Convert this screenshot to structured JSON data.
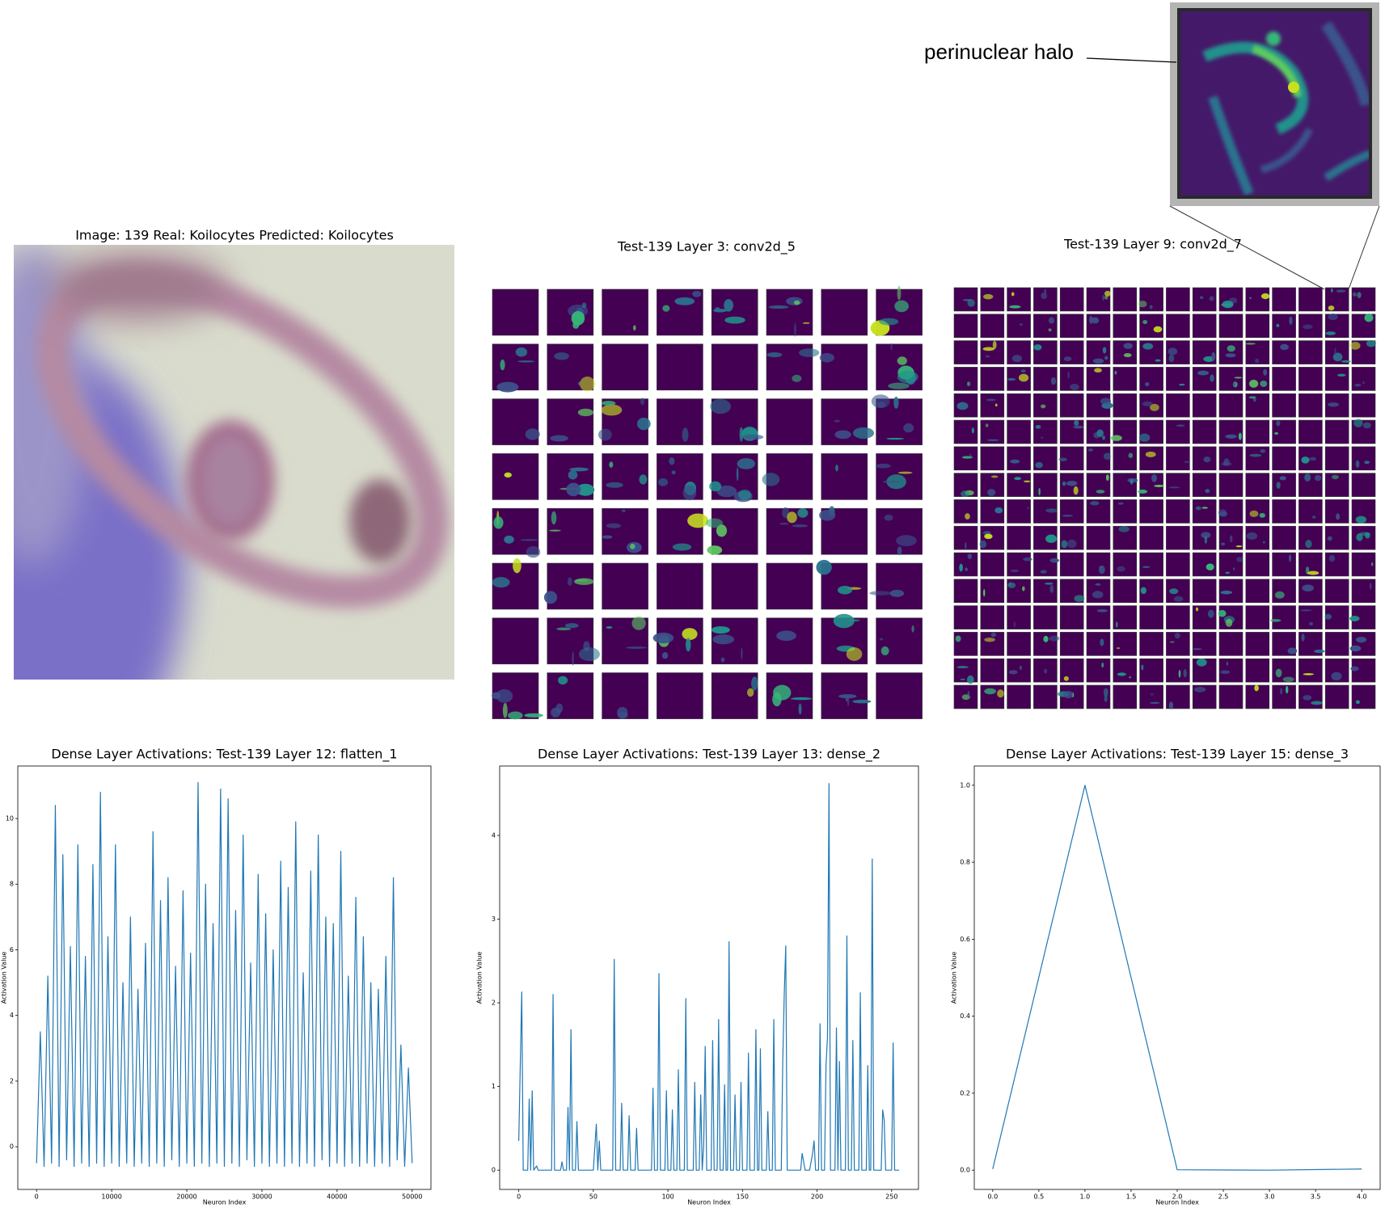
{
  "annotation": "perinuclear halo",
  "images": [
    {
      "title": "Image: 139 Real: Koilocytes Predicted: Koilocytes"
    },
    {
      "title": "Test-139 Layer 3: conv2d_5"
    },
    {
      "title": "Test-139 Layer 9: conv2d_7"
    }
  ],
  "chart_data": [
    {
      "type": "line",
      "title": "Dense Layer Activations: Test-139 Layer 12: flatten_1",
      "x_label": "Neuron Index",
      "y_label": "Activation Value",
      "color": "#1f77b4",
      "x": [
        0,
        500,
        1000,
        1500,
        2000,
        2500,
        3000,
        3500,
        4000,
        4500,
        5000,
        5500,
        6000,
        6500,
        7000,
        7500,
        8000,
        8500,
        9000,
        9500,
        10000,
        10500,
        11000,
        11500,
        12000,
        12500,
        13000,
        13500,
        14000,
        14500,
        15000,
        15500,
        16000,
        16500,
        17000,
        17500,
        18000,
        18500,
        19000,
        19500,
        20000,
        20500,
        21000,
        21500,
        22000,
        22500,
        23000,
        23500,
        24000,
        24500,
        25000,
        25500,
        26000,
        26500,
        27000,
        27500,
        28000,
        28500,
        29000,
        29500,
        30000,
        30500,
        31000,
        31500,
        32000,
        32500,
        33000,
        33500,
        34000,
        34500,
        35000,
        35500,
        36000,
        36500,
        37000,
        37500,
        38000,
        38500,
        39000,
        39500,
        40000,
        40500,
        41000,
        41500,
        42000,
        42500,
        43000,
        43500,
        44000,
        44500,
        45000,
        45500,
        46000,
        46500,
        47000,
        47500,
        48000,
        48500,
        49000,
        49500,
        50000
      ],
      "values": [
        -0.5,
        3.5,
        -0.6,
        5.2,
        -0.5,
        10.4,
        -0.6,
        8.9,
        -0.4,
        6.1,
        -0.6,
        9.2,
        -0.5,
        5.8,
        -0.6,
        8.6,
        -0.5,
        10.8,
        -0.6,
        6.4,
        -0.5,
        9.2,
        -0.6,
        5.0,
        -0.5,
        7.0,
        -0.6,
        4.8,
        -0.5,
        6.2,
        -0.6,
        9.6,
        -0.5,
        7.5,
        -0.6,
        8.2,
        -0.4,
        5.5,
        -0.6,
        7.8,
        -0.5,
        5.9,
        -0.6,
        11.1,
        -0.5,
        8.0,
        -0.6,
        6.8,
        -0.5,
        10.9,
        -0.6,
        10.6,
        -0.5,
        7.2,
        -0.6,
        9.5,
        -0.4,
        5.6,
        -0.6,
        8.3,
        -0.5,
        7.1,
        -0.6,
        6.0,
        -0.5,
        8.7,
        -0.6,
        7.9,
        -0.5,
        9.9,
        -0.6,
        5.3,
        -0.5,
        8.4,
        -0.6,
        9.5,
        -0.4,
        7.0,
        -0.6,
        6.8,
        -0.5,
        9.0,
        -0.6,
        5.2,
        -0.5,
        7.6,
        -0.6,
        6.4,
        -0.5,
        5.0,
        -0.6,
        4.8,
        -0.5,
        5.8,
        -0.6,
        8.2,
        -0.4,
        3.1,
        -0.6,
        2.4,
        -0.5
      ],
      "xlim": [
        -2500,
        52500
      ],
      "ylim": [
        -1.3,
        11.6
      ],
      "xticks": [
        0,
        10000,
        20000,
        30000,
        40000,
        50000
      ],
      "yticks": [
        0,
        2,
        4,
        6,
        8,
        10
      ]
    },
    {
      "type": "line",
      "title": "Dense Layer Activations: Test-139 Layer 13: dense_2",
      "x_label": "Neuron Index",
      "y_label": "Activation Value",
      "color": "#1f77b4",
      "x": [
        0,
        2,
        3,
        6,
        7,
        8,
        9,
        10,
        12,
        13,
        22,
        23,
        24,
        28,
        29,
        30,
        32,
        33,
        34,
        35,
        36,
        38,
        39,
        40,
        50,
        52,
        53,
        54,
        55,
        63,
        64,
        65,
        68,
        69,
        70,
        73,
        74,
        75,
        78,
        79,
        80,
        89,
        90,
        91,
        93,
        94,
        95,
        98,
        99,
        100,
        102,
        103,
        104,
        106,
        107,
        108,
        111,
        112,
        113,
        117,
        118,
        119,
        121,
        122,
        123,
        124,
        125,
        126,
        129,
        130,
        131,
        133,
        134,
        135,
        137,
        138,
        139,
        140,
        141,
        142,
        144,
        145,
        146,
        148,
        149,
        150,
        153,
        154,
        155,
        158,
        159,
        160,
        161,
        162,
        163,
        166,
        167,
        168,
        170,
        171,
        172,
        176,
        177,
        178,
        179,
        180,
        189,
        190,
        191,
        192,
        195,
        196,
        197,
        198,
        199,
        201,
        202,
        203,
        205,
        206,
        207,
        208,
        209,
        212,
        213,
        214,
        215,
        216,
        219,
        220,
        221,
        223,
        224,
        225,
        228,
        229,
        230,
        233,
        234,
        235,
        236,
        237,
        238,
        243,
        244,
        245,
        246,
        250,
        251,
        252,
        255
      ],
      "values": [
        0.35,
        2.13,
        0,
        0,
        0.85,
        0,
        0.95,
        0,
        0.05,
        0,
        0,
        2.1,
        0,
        0,
        0.1,
        0,
        0,
        0.75,
        0,
        1.68,
        0,
        0,
        0.58,
        0,
        0,
        0.55,
        0,
        0.35,
        0,
        0,
        2.52,
        0,
        0,
        0.8,
        0,
        0,
        0.65,
        0,
        0,
        0.5,
        0,
        0,
        0.98,
        0,
        0,
        2.35,
        0,
        0,
        0.95,
        0,
        0,
        0.72,
        0,
        0,
        1.2,
        0,
        0,
        2.05,
        0,
        0,
        1.05,
        0,
        0,
        0.9,
        0,
        0.3,
        1.48,
        0,
        0,
        1.55,
        0,
        0,
        1.8,
        0,
        0,
        1.02,
        0,
        0,
        2.73,
        0,
        0,
        0.9,
        0,
        0,
        1.05,
        0,
        0,
        1.4,
        0,
        0,
        1.68,
        0,
        0,
        1.45,
        0,
        0,
        0.7,
        0,
        0,
        1.8,
        0,
        0,
        1.3,
        2.1,
        2.68,
        0,
        0,
        0.2,
        0.1,
        0,
        0,
        0.1,
        0.2,
        0.35,
        0,
        0,
        1.75,
        0,
        0,
        1.25,
        1.6,
        4.62,
        0,
        0,
        1.7,
        0,
        1.3,
        0,
        0,
        2.8,
        0,
        0,
        1.55,
        0,
        0,
        2.12,
        0,
        0,
        1.25,
        0,
        0,
        3.72,
        0,
        0,
        0.72,
        0.6,
        0,
        0,
        1.52,
        0,
        0
      ],
      "xlim": [
        -12.8,
        268
      ],
      "ylim": [
        -0.23,
        4.83
      ],
      "xticks": [
        0,
        50,
        100,
        150,
        200,
        250
      ],
      "yticks": [
        0,
        1,
        2,
        3,
        4
      ]
    },
    {
      "type": "line",
      "title": "Dense Layer Activations: Test-139 Layer 15: dense_3",
      "x_label": "Neuron Index",
      "y_label": "Activation Value",
      "color": "#1f77b4",
      "x": [
        0,
        1,
        2,
        3,
        4
      ],
      "values": [
        0.003,
        1.0,
        0.001,
        0.0,
        0.003
      ],
      "xlim": [
        -0.2,
        4.2
      ],
      "ylim": [
        -0.05,
        1.05
      ],
      "xticks": [
        {
          "value": 0,
          "label": "0.0"
        },
        {
          "value": 0.5,
          "label": "0.5"
        },
        {
          "value": 1,
          "label": "1.0"
        },
        {
          "value": 1.5,
          "label": "1.5"
        },
        {
          "value": 2,
          "label": "2.0"
        },
        {
          "value": 2.5,
          "label": "2.5"
        },
        {
          "value": 3,
          "label": "3.0"
        },
        {
          "value": 3.5,
          "label": "3.5"
        },
        {
          "value": 4,
          "label": "4.0"
        }
      ],
      "yticks": [
        {
          "value": 0,
          "label": "0.0"
        },
        {
          "value": 0.2,
          "label": "0.2"
        },
        {
          "value": 0.4,
          "label": "0.4"
        },
        {
          "value": 0.6,
          "label": "0.6"
        },
        {
          "value": 0.8,
          "label": "0.8"
        },
        {
          "value": 1,
          "label": "1.0"
        }
      ]
    }
  ]
}
